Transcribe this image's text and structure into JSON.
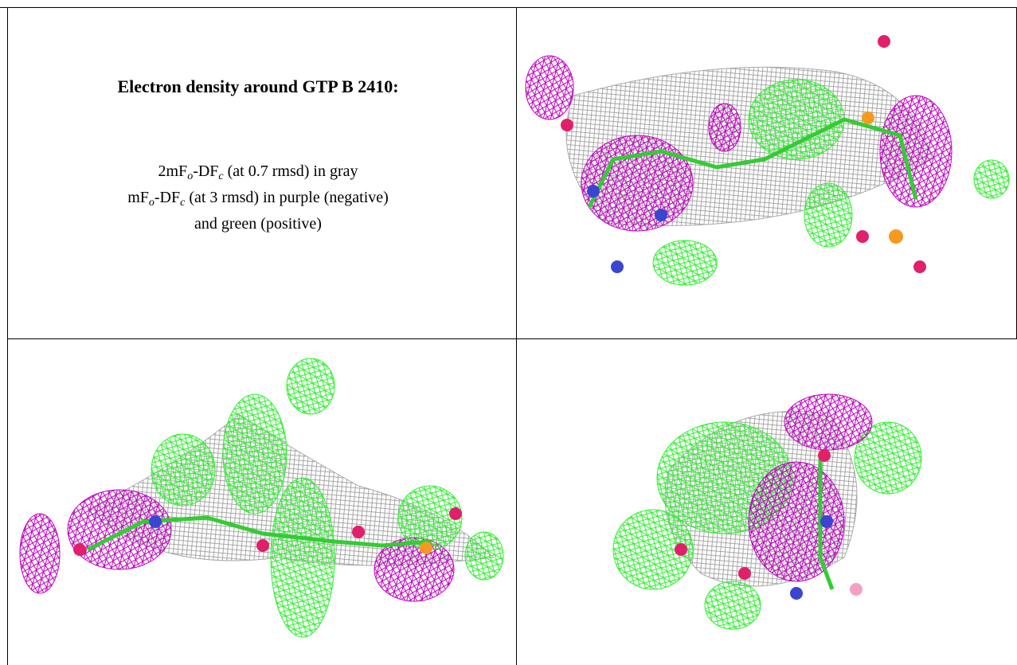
{
  "panel": {
    "title": "Electron density around GTP B 2410:",
    "lines": [
      [
        "2mF",
        "o",
        "-DF",
        "c",
        " (at 0.7 rmsd) in gray"
      ],
      [
        "mF",
        "o",
        "-DF",
        "c",
        " (at 3 rmsd) in purple (negative)"
      ],
      [
        "and green (positive)"
      ]
    ]
  }
}
